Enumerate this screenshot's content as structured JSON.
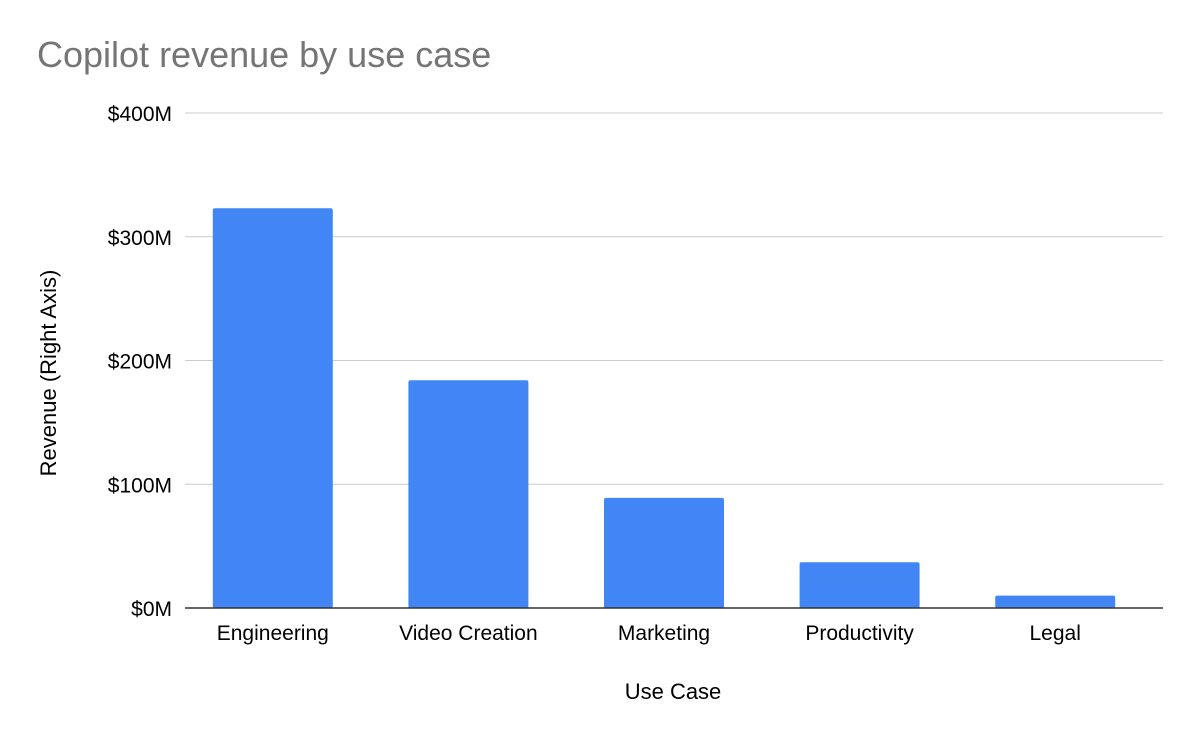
{
  "chart_data": {
    "type": "bar",
    "title": "Copilot revenue by use case",
    "xlabel": "Use Case",
    "ylabel": "Revenue (Right Axis)",
    "categories": [
      "Engineering",
      "Video Creation",
      "Marketing",
      "Productivity",
      "Legal"
    ],
    "values": [
      323,
      184,
      89,
      37,
      10
    ],
    "value_unit": "$M",
    "ylim": [
      0,
      400
    ],
    "yticks": [
      0,
      100,
      200,
      300,
      400
    ],
    "ytick_labels": [
      "$0M",
      "$100M",
      "$200M",
      "$300M",
      "$400M"
    ],
    "grid": true,
    "legend": "none",
    "colors": {
      "bar": "#4285f4",
      "title": "#757575",
      "text": "#000000",
      "grid": "#cccccc",
      "axis": "#333333"
    }
  }
}
